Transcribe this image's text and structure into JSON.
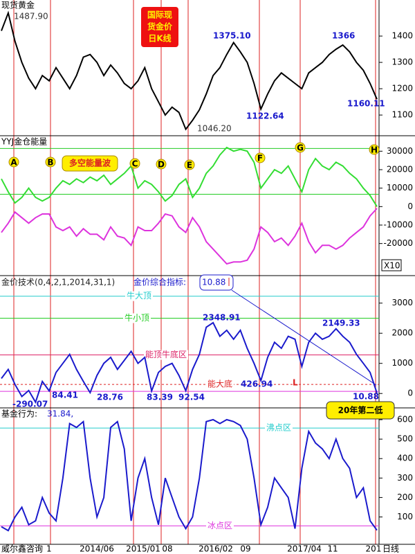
{
  "chart_data": [
    {
      "type": "line",
      "title": "现货黄金",
      "box_text": [
        "国际现",
        "货金价",
        "日K线"
      ],
      "ylim": [
        1024,
        1537
      ],
      "yticks": [
        1100,
        1200,
        1300,
        1400
      ],
      "series": [
        {
          "color": "#000000",
          "values": [
            1420,
            1487.9,
            1380,
            1300,
            1240,
            1200,
            1250,
            1230,
            1280,
            1240,
            1200,
            1250,
            1320,
            1330,
            1300,
            1250,
            1290,
            1260,
            1220,
            1200,
            1230,
            1280,
            1200,
            1150,
            1100,
            1130,
            1110,
            1046.2,
            1080,
            1120,
            1180,
            1250,
            1280,
            1330,
            1375.1,
            1340,
            1300,
            1220,
            1122.64,
            1180,
            1230,
            1260,
            1240,
            1220,
            1200,
            1260,
            1280,
            1300,
            1330,
            1350,
            1366,
            1340,
            1300,
            1270,
            1220,
            1160.11
          ]
        }
      ],
      "annotations": [
        {
          "text": "1487.90",
          "color": "#333333"
        },
        {
          "text": "1375.10",
          "color": "#1a1acc"
        },
        {
          "text": "1366",
          "color": "#1a1acc"
        },
        {
          "text": "1160.11",
          "color": "#1a1acc"
        },
        {
          "text": "1122.64",
          "color": "#1a1acc"
        },
        {
          "text": "1046.20",
          "color": "#333333"
        }
      ]
    },
    {
      "type": "line",
      "title": "YYJ金仓能量",
      "box_text": [
        "多空能量波"
      ],
      "markers": [
        "A",
        "B",
        "C",
        "D",
        "E",
        "F",
        "G",
        "H"
      ],
      "scale_note": "X10",
      "ylim": [
        -37000,
        38000
      ],
      "yticks": [
        30000,
        20000,
        10000,
        0,
        -10000,
        -20000
      ],
      "reference_lines": [
        {
          "value": 31500,
          "color": "#22cc22"
        },
        {
          "value": 6700,
          "color": "#22cc22"
        }
      ],
      "series": [
        {
          "color": "#33dd33",
          "values": [
            15000,
            8000,
            2000,
            5000,
            10000,
            5000,
            3000,
            5000,
            10000,
            14000,
            12000,
            15000,
            13000,
            16000,
            14000,
            17000,
            12000,
            15000,
            18000,
            22000,
            10000,
            14000,
            12000,
            8000,
            3000,
            6000,
            12000,
            15000,
            5000,
            10000,
            18000,
            22000,
            28000,
            32000,
            30000,
            31000,
            30000,
            24000,
            10000,
            15000,
            20000,
            18000,
            22000,
            15000,
            8000,
            20000,
            26000,
            22000,
            20000,
            24000,
            22000,
            18000,
            15000,
            10000,
            6000,
            0
          ]
        },
        {
          "color": "#dd33dd",
          "values": [
            -14000,
            -9000,
            -3000,
            -6000,
            -9000,
            -6000,
            -4000,
            -4000,
            -11000,
            -13000,
            -11000,
            -16000,
            -12000,
            -15000,
            -15000,
            -18000,
            -11000,
            -16000,
            -17000,
            -21000,
            -11000,
            -13000,
            -13000,
            -9000,
            -4000,
            -5000,
            -11000,
            -14000,
            -6000,
            -11000,
            -19000,
            -23000,
            -27000,
            -31000,
            -30000,
            -30000,
            -29000,
            -23000,
            -11000,
            -14000,
            -19000,
            -17000,
            -21000,
            -16000,
            -9000,
            -19000,
            -25000,
            -21000,
            -21000,
            -23000,
            -21000,
            -17000,
            -14000,
            -11000,
            -5000,
            -1000
          ]
        }
      ]
    },
    {
      "type": "line",
      "title": "金价技术(0,4,2,1,2014,31,1)",
      "subtitle": "金价综合指标:",
      "current": "10.88",
      "callout": "20年第二低",
      "ylim": [
        -455,
        3890
      ],
      "yticks": [
        0,
        1000,
        2000,
        3000
      ],
      "reference_lines": [
        {
          "value": 3230,
          "label": "牛大顶",
          "color": "#22cccc"
        },
        {
          "value": 2500,
          "label": "牛小顶",
          "color": "#22cc22"
        },
        {
          "value": 1280,
          "label": "能顶牛底区",
          "color": "#dd2266"
        },
        {
          "value": 300,
          "label": "能大底",
          "color": "#dd2222",
          "dashed": true
        },
        {
          "value": 70,
          "color": "#dd33dd"
        }
      ],
      "series": [
        {
          "color": "#1a1acc",
          "values": [
            500,
            800,
            300,
            -100,
            100,
            -290.07,
            400,
            84.41,
            700,
            1000,
            1300,
            800,
            400,
            28.76,
            600,
            1000,
            1200,
            800,
            1100,
            1400,
            1000,
            1200,
            83.39,
            700,
            900,
            1000,
            600,
            92.54,
            800,
            1300,
            2200,
            2348.91,
            1900,
            2100,
            1800,
            2100,
            1500,
            1000,
            426.94,
            1200,
            1700,
            1500,
            1900,
            1800,
            900,
            1700,
            2000,
            1800,
            1900,
            2149.33,
            1900,
            1700,
            1300,
            1000,
            700,
            10.88
          ]
        }
      ],
      "annotations": [
        {
          "text": "2348.91",
          "color": "#1a1acc"
        },
        {
          "text": "2149.33",
          "color": "#1a1acc"
        },
        {
          "text": "84.41",
          "color": "#1a1acc"
        },
        {
          "text": "-290.07",
          "color": "#1a1acc"
        },
        {
          "text": "28.76",
          "color": "#1a1acc"
        },
        {
          "text": "83.39",
          "color": "#1a1acc"
        },
        {
          "text": "92.54",
          "color": "#1a1acc"
        },
        {
          "text": "426.94",
          "color": "#1a1acc"
        },
        {
          "text": "L",
          "color": "#dd2222"
        },
        {
          "text": "10.88",
          "color": "#1a1acc"
        }
      ]
    },
    {
      "type": "line",
      "title": "基金行为:",
      "current": "31.84,",
      "ylim": [
        -37,
        657
      ],
      "yticks": [
        100,
        200,
        300,
        400,
        500,
        600
      ],
      "reference_lines": [
        {
          "value": 557,
          "label": "沸点区",
          "color": "#22cccc"
        },
        {
          "value": 54,
          "label": "冰点区",
          "color": "#dd33dd"
        }
      ],
      "series": [
        {
          "color": "#1a1acc",
          "values": [
            50,
            30,
            100,
            150,
            60,
            80,
            200,
            120,
            80,
            300,
            580,
            560,
            590,
            300,
            100,
            200,
            560,
            590,
            450,
            80,
            300,
            400,
            200,
            60,
            300,
            200,
            100,
            40,
            100,
            300,
            590,
            600,
            580,
            600,
            590,
            570,
            500,
            300,
            60,
            150,
            300,
            250,
            200,
            40,
            350,
            540,
            480,
            450,
            400,
            500,
            400,
            350,
            200,
            250,
            80,
            31.84
          ]
        }
      ],
      "x_labels": [
        "威尔鑫咨询",
        "1",
        "2014/06",
        "2015/01",
        "08",
        "2016/02",
        "09",
        "2017/04",
        "11",
        "201",
        "日线"
      ]
    }
  ]
}
